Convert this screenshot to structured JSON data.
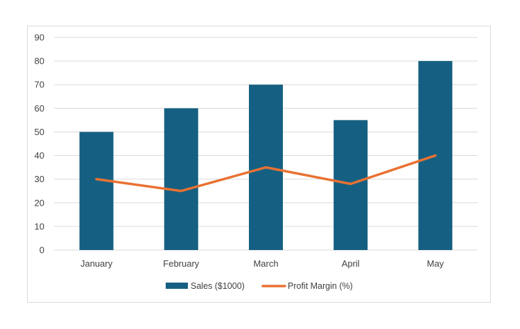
{
  "chart_data": {
    "type": "bar",
    "categories": [
      "January",
      "February",
      "March",
      "April",
      "May"
    ],
    "series": [
      {
        "name": "Sales ($1000)",
        "type": "bar",
        "color": "#156082",
        "values": [
          50,
          60,
          70,
          55,
          80
        ]
      },
      {
        "name": "Profit Margin (%)",
        "type": "line",
        "color": "#e97132",
        "values": [
          30,
          25,
          35,
          28,
          40
        ]
      }
    ],
    "ylim": [
      0,
      90
    ],
    "yticks": [
      0,
      10,
      20,
      30,
      40,
      50,
      60,
      70,
      80,
      90
    ],
    "grid": true,
    "legend_position": "bottom",
    "title": "",
    "xlabel": "",
    "ylabel": ""
  }
}
